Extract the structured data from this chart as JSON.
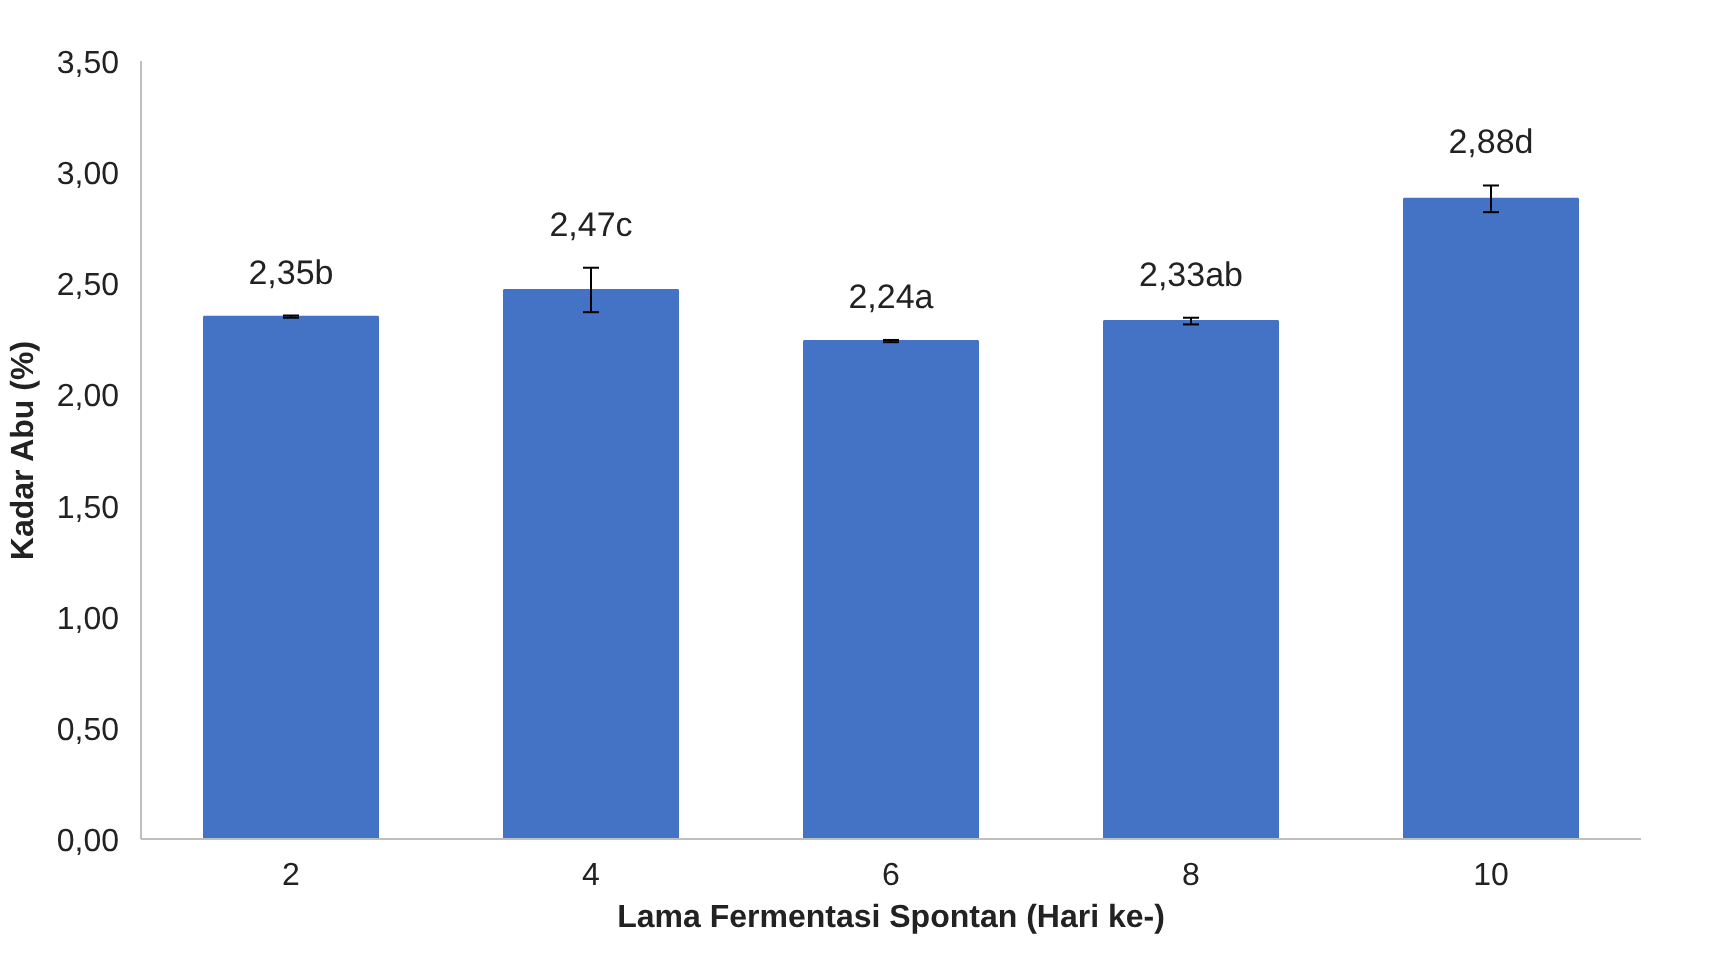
{
  "chart_data": {
    "type": "bar",
    "xlabel": "Lama Fermentasi Spontan (Hari ke-)",
    "ylabel": "Kadar Abu (%)",
    "categories": [
      "2",
      "4",
      "6",
      "8",
      "10"
    ],
    "values": [
      2.35,
      2.47,
      2.24,
      2.33,
      2.88
    ],
    "errors": [
      0.005,
      0.1,
      0.005,
      0.015,
      0.06
    ],
    "value_labels": [
      "2,35b",
      "2,47c",
      "2,24a",
      "2,33ab",
      "2,88d"
    ],
    "color": "#4472c4",
    "ylim": [
      0,
      3.5
    ],
    "yticks": [
      {
        "value": 0,
        "label": "0,00"
      },
      {
        "value": 0.5,
        "label": "0,50"
      },
      {
        "value": 1,
        "label": "1,00"
      },
      {
        "value": 1.5,
        "label": "1,50"
      },
      {
        "value": 2,
        "label": "2,00"
      },
      {
        "value": 2.5,
        "label": "2,50"
      },
      {
        "value": 3,
        "label": "3,00"
      },
      {
        "value": 3.5,
        "label": "3,50"
      }
    ],
    "grid": false
  }
}
